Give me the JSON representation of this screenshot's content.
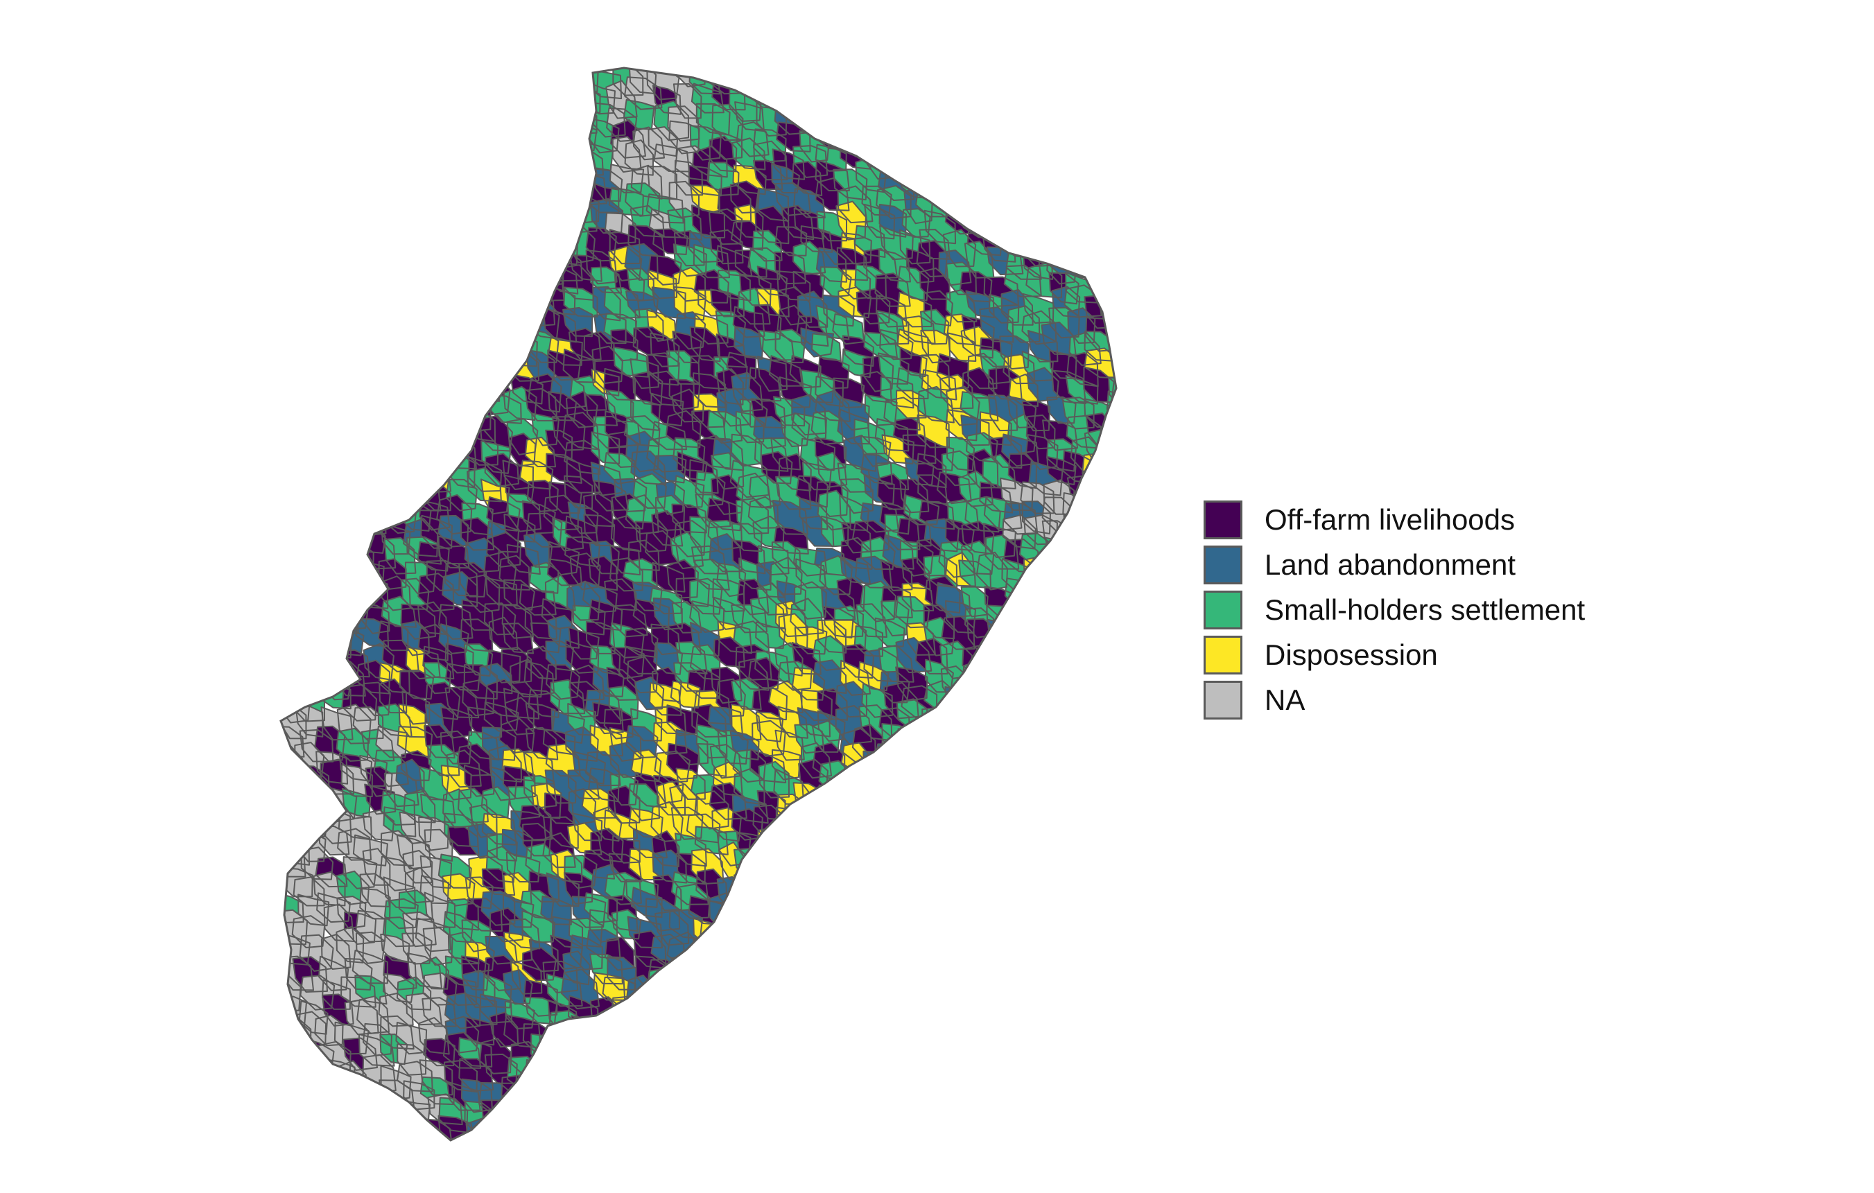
{
  "map": {
    "classes": [
      {
        "key": "offfarm",
        "label": "Off-farm livelihoods",
        "color": "#440154"
      },
      {
        "key": "abandon",
        "label": "Land abandonment",
        "color": "#31688e"
      },
      {
        "key": "smallhold",
        "label": "Small-holders settlement",
        "color": "#35b779"
      },
      {
        "key": "dispo",
        "label": "Disposession",
        "color": "#fde725"
      },
      {
        "key": "na",
        "label": "NA",
        "color": "#bebebe"
      }
    ],
    "border_color": "#5a5a5a"
  },
  "legend": {
    "items": [
      {
        "label": "Off-farm livelihoods",
        "color": "#440154"
      },
      {
        "label": "Land abandonment",
        "color": "#31688e"
      },
      {
        "label": "Small-holders settlement",
        "color": "#35b779"
      },
      {
        "label": "Disposession",
        "color": "#fde725"
      },
      {
        "label": "NA",
        "color": "#bebebe"
      }
    ]
  }
}
